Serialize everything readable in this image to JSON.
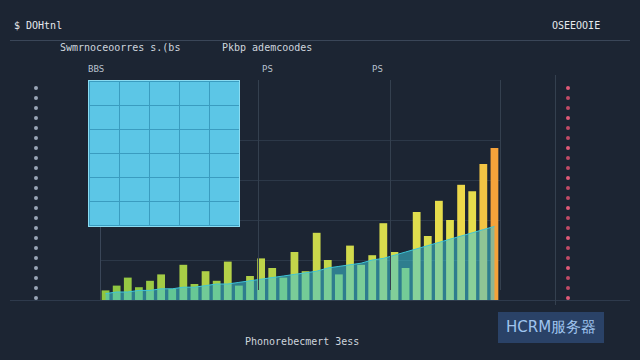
{
  "header": {
    "left": "$ DOHtnl",
    "right": "OSEEOOIE"
  },
  "panels": {
    "title_left": "Swmrnoceoorres s.(bs",
    "title_right": "Pkbp ademcoodes",
    "labels": [
      "BBS",
      "PS",
      "PS"
    ]
  },
  "footer": "Phonorebecmert 3ess",
  "watermark": "HCRM服务器",
  "chart_data": {
    "type": "bar",
    "categories": [
      null,
      null,
      null,
      null,
      null,
      null,
      null,
      null,
      null,
      null,
      null,
      null,
      null,
      null,
      null,
      null,
      null,
      null,
      null,
      null,
      null,
      null,
      null,
      null,
      null,
      null,
      null,
      null,
      null,
      null,
      null,
      null,
      null,
      null,
      null,
      null
    ],
    "series": [
      {
        "type": "bar",
        "values": [
          6,
          9,
          14,
          8,
          12,
          16,
          7,
          22,
          10,
          18,
          12,
          24,
          9,
          15,
          26,
          20,
          14,
          30,
          18,
          42,
          25,
          16,
          34,
          22,
          28,
          48,
          30,
          20,
          55,
          40,
          62,
          50,
          72,
          68,
          85,
          95
        ],
        "colors": [
          "#8fc641",
          "#8fc641",
          "#96c843",
          "#8fc641",
          "#9cca44",
          "#a3cc45",
          "#8fc641",
          "#a9ce46",
          "#9cca44",
          "#b0d047",
          "#a3cc45",
          "#b6d248",
          "#9cca44",
          "#b0d047",
          "#bdd449",
          "#b6d248",
          "#a9ce46",
          "#c4d64a",
          "#b6d248",
          "#cbd84b",
          "#c4d64a",
          "#b0d047",
          "#d2da4c",
          "#c4d64a",
          "#cbd84b",
          "#d9dc4d",
          "#d2da4c",
          "#b6d248",
          "#e0de4e",
          "#d9dc4d",
          "#e6dc4c",
          "#e0de4e",
          "#ecd84a",
          "#e6dc4c",
          "#f2c444",
          "#f5a23a"
        ]
      },
      {
        "type": "line",
        "color": "#3ec6d8",
        "values": [
          4,
          5,
          5,
          6,
          6,
          7,
          7,
          8,
          8,
          9,
          10,
          10,
          11,
          12,
          13,
          14,
          15,
          16,
          17,
          18,
          20,
          21,
          22,
          23,
          25,
          26,
          28,
          30,
          32,
          34,
          36,
          38,
          40,
          42,
          44,
          46
        ]
      }
    ],
    "ylim": [
      0,
      100
    ],
    "yticks": [
      0,
      25,
      50,
      75,
      100
    ],
    "grid": true,
    "tick_labels": false
  }
}
